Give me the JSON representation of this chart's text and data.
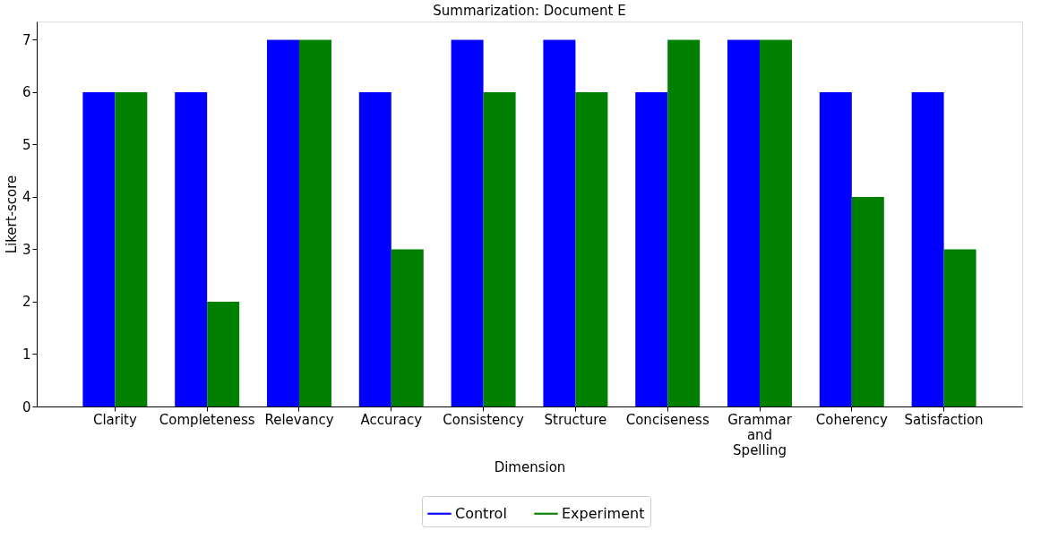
{
  "chart_data": {
    "type": "bar",
    "title": "Summarization: Document E",
    "xlabel": "Dimension",
    "ylabel": "Likert-score",
    "categories": [
      "Clarity",
      "Completeness",
      "Relevancy",
      "Accuracy",
      "Consistency",
      "Structure",
      "Conciseness",
      "Grammar\nand\nSpelling",
      "Coherency",
      "Satisfaction"
    ],
    "series": [
      {
        "name": "Control",
        "color": "#0000ff",
        "values": [
          6,
          6,
          7,
          6,
          7,
          7,
          6,
          7,
          6,
          6
        ]
      },
      {
        "name": "Experiment",
        "color": "#008000",
        "values": [
          6,
          2,
          7,
          3,
          6,
          6,
          7,
          7,
          4,
          3
        ]
      }
    ],
    "ylim": [
      0,
      7.35
    ],
    "yticks": [
      0,
      1,
      2,
      3,
      4,
      5,
      6,
      7
    ],
    "legend": "bottom"
  }
}
